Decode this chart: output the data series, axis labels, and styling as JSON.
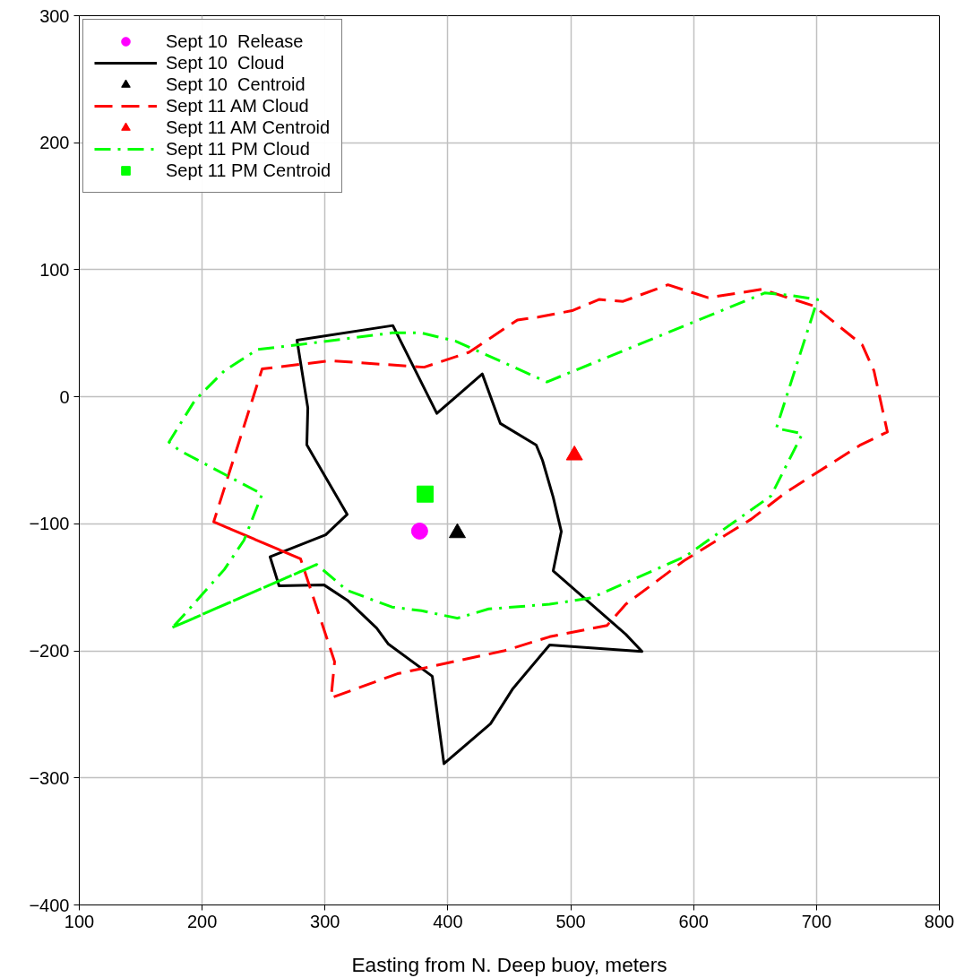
{
  "chart_data": {
    "type": "line",
    "xlabel": "Easting from N. Deep buoy, meters",
    "xlim": [
      100,
      800
    ],
    "ylim": [
      -400,
      300
    ],
    "xticks": [
      100,
      200,
      300,
      400,
      500,
      600,
      700,
      800
    ],
    "yticks": [
      -400,
      -300,
      -200,
      -100,
      0,
      100,
      200,
      300
    ],
    "grid": true,
    "legend": "top left",
    "series": [
      {
        "name": "Sept 10  Release",
        "type": "scatter",
        "marker": "circle",
        "color": "#ff00ff",
        "x": [
          377
        ],
        "values": [
          -105.7
        ]
      },
      {
        "name": "Sept 10  Cloud",
        "line_style": "solid",
        "color": "#000000",
        "x": [
          277.2,
          355.2,
          391,
          428,
          442.7,
          471.9,
          477,
          485.7,
          492.3,
          485.7,
          544.8,
          558,
          482.8,
          452.9,
          434.7,
          396.8,
          387.3,
          351.6,
          342,
          318,
          299,
          262.6,
          255.3,
          300.5,
          318,
          285.2,
          286,
          277.2,
          355.2
        ],
        "values": [
          44.5,
          56.1,
          -13,
          18,
          -21,
          -38,
          -50,
          -79,
          -106,
          -137,
          -187,
          -200.5,
          -195.4,
          -229.7,
          -257.4,
          -288.8,
          -220,
          -194.7,
          -182,
          -160,
          -148,
          -148.8,
          -126,
          -108.6,
          -92.6,
          -37.9,
          -8.7,
          44.5,
          56.1
        ]
      },
      {
        "name": "Sept 10  Centroid",
        "type": "scatter",
        "marker": "triangle",
        "color": "#000000",
        "x": [
          407.7
        ],
        "values": [
          -107.2
        ]
      },
      {
        "name": "Sept 11 AM Cloud",
        "line_style": "dashed",
        "color": "#ff0000",
        "x": [
          209.4,
          280.1,
          307.8,
          304.9,
          358.9,
          376.4,
          446.4,
          482.8,
          529.5,
          544.8,
          592.2,
          646.9,
          675.3,
          735.8,
          757.7,
          746.8,
          737.3,
          697.9,
          655.6,
          611.9,
          579.1,
          542.6,
          523,
          501.1,
          473.3,
          456.6,
          417.2,
          380.7,
          304.2,
          248.8,
          209.4,
          280.1
        ],
        "values": [
          -98.4,
          -127.6,
          -208.5,
          -237,
          -218,
          -214.4,
          -199.8,
          -188.9,
          -180,
          -163.3,
          -129,
          -96.3,
          -75.1,
          -37.9,
          -27.7,
          20.4,
          40.8,
          71.5,
          84.6,
          78,
          88.2,
          75.1,
          76.6,
          67.8,
          62.7,
          60.5,
          35,
          23.3,
          28.4,
          21.9,
          -98.4,
          -127.6
        ]
      },
      {
        "name": "Sept 11 AM Centroid",
        "type": "scatter",
        "marker": "triangle",
        "color": "#ff0000",
        "x": [
          503
        ],
        "values": [
          -46
        ]
      },
      {
        "name": "Sept 11 PM Cloud",
        "line_style": "dashdot",
        "color": "#00ff00",
        "x": [
          175.8,
          293.2,
          318,
          354.5,
          378.5,
          407.7,
          433.2,
          482.8,
          517,
          593.7,
          663,
          688.5,
          667.3,
          700.9,
          677.5,
          657.8,
          480.6,
          406.3,
          378.5,
          354.5,
          277,
          245,
          218,
          194,
          173,
          181.7,
          248.8,
          234,
          218,
          187.5,
          175.8,
          293.2
        ],
        "values": [
          -181.6,
          -132,
          -152.4,
          -165.5,
          -168.4,
          -174.3,
          -167,
          -163.3,
          -158.2,
          -125.4,
          -78,
          -29,
          -24.8,
          76.6,
          80,
          81.7,
          11.7,
          43.8,
          50.3,
          50.3,
          40.8,
          37.2,
          20.4,
          -2.9,
          -35.7,
          -42.3,
          -76.6,
          -113,
          -136,
          -169.2,
          -181.6,
          -132
        ]
      },
      {
        "name": "Sept 11 PM Centroid",
        "type": "scatter",
        "marker": "square",
        "color": "#00ff00",
        "x": [
          381.5
        ],
        "values": [
          -76.6
        ]
      }
    ]
  }
}
